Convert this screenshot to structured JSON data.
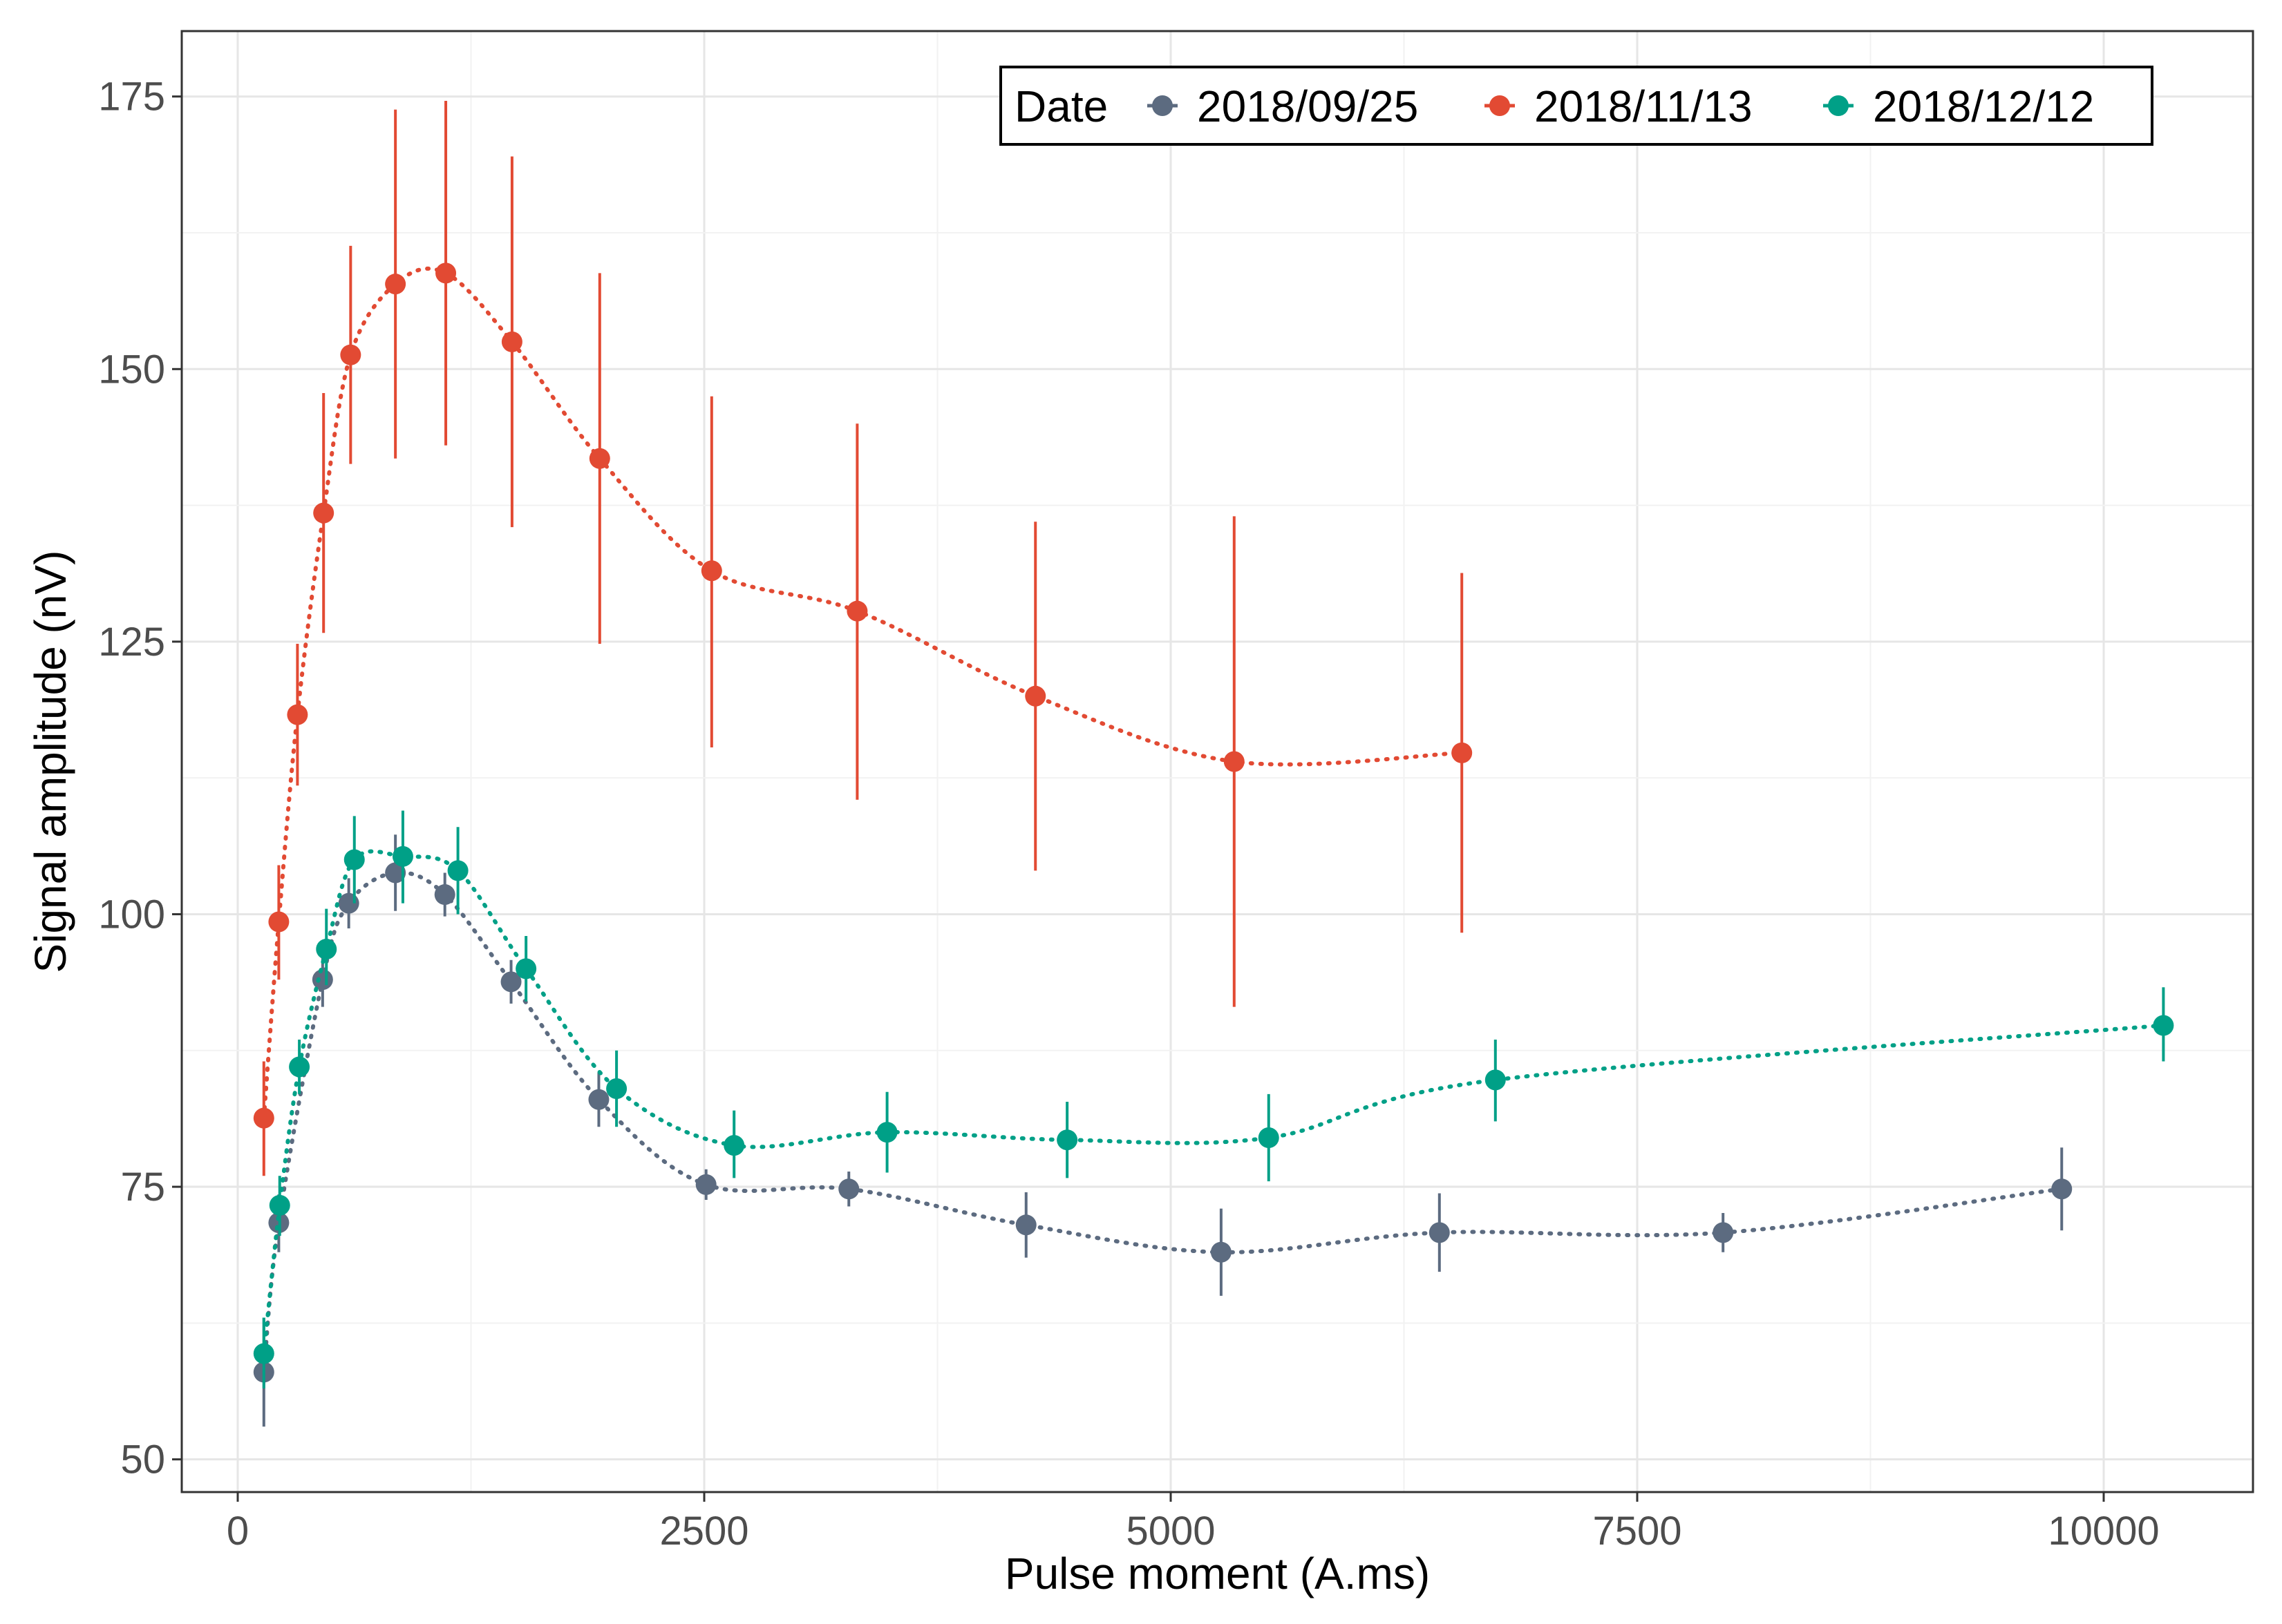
{
  "chart_data": {
    "type": "scatter",
    "title": "",
    "xlabel": "Pulse moment (A.ms)",
    "ylabel": "Signal amplitude (nV)",
    "xlim": [
      -300,
      10800
    ],
    "ylim": [
      47,
      181
    ],
    "x_ticks": [
      0,
      2500,
      5000,
      7500,
      10000
    ],
    "y_ticks": [
      50,
      75,
      100,
      125,
      150,
      175
    ],
    "grid": true,
    "legend": {
      "title": "Date",
      "position": "top-right",
      "entries": [
        "2018/09/25",
        "2018/11/13",
        "2018/12/12"
      ]
    },
    "series": [
      {
        "name": "2018/09/25",
        "color": "#5c6b80",
        "points": [
          {
            "x": 140,
            "y": 58.0,
            "lo": 53.0,
            "hi": 63.0
          },
          {
            "x": 220,
            "y": 71.7,
            "lo": 69.0,
            "hi": 74.3
          },
          {
            "x": 455,
            "y": 94.0,
            "lo": 91.5,
            "hi": 96.5
          },
          {
            "x": 595,
            "y": 101.0,
            "lo": 98.7,
            "hi": 103.3
          },
          {
            "x": 845,
            "y": 103.8,
            "lo": 100.3,
            "hi": 107.3
          },
          {
            "x": 1110,
            "y": 101.8,
            "lo": 99.8,
            "hi": 103.8
          },
          {
            "x": 1465,
            "y": 93.8,
            "lo": 91.8,
            "hi": 95.8
          },
          {
            "x": 1935,
            "y": 83.0,
            "lo": 80.5,
            "hi": 85.5
          },
          {
            "x": 2510,
            "y": 75.2,
            "lo": 73.8,
            "hi": 76.6
          },
          {
            "x": 3275,
            "y": 74.8,
            "lo": 73.2,
            "hi": 76.4
          },
          {
            "x": 4225,
            "y": 71.5,
            "lo": 68.5,
            "hi": 74.5
          },
          {
            "x": 5270,
            "y": 69.0,
            "lo": 65.0,
            "hi": 73.0
          },
          {
            "x": 6440,
            "y": 70.8,
            "lo": 67.2,
            "hi": 74.4
          },
          {
            "x": 7960,
            "y": 70.8,
            "lo": 69.0,
            "hi": 72.6
          },
          {
            "x": 9775,
            "y": 74.8,
            "lo": 71.0,
            "hi": 78.6
          }
        ]
      },
      {
        "name": "2018/11/13",
        "color": "#e24a33",
        "points": [
          {
            "x": 140,
            "y": 81.3,
            "lo": 76.0,
            "hi": 86.5
          },
          {
            "x": 220,
            "y": 99.3,
            "lo": 94.0,
            "hi": 104.5
          },
          {
            "x": 320,
            "y": 118.3,
            "lo": 111.8,
            "hi": 124.8
          },
          {
            "x": 460,
            "y": 136.8,
            "lo": 125.8,
            "hi": 147.8
          },
          {
            "x": 605,
            "y": 151.3,
            "lo": 141.3,
            "hi": 161.3
          },
          {
            "x": 845,
            "y": 157.8,
            "lo": 141.8,
            "hi": 173.8
          },
          {
            "x": 1115,
            "y": 158.8,
            "lo": 143.0,
            "hi": 174.6
          },
          {
            "x": 1470,
            "y": 152.5,
            "lo": 135.5,
            "hi": 169.5
          },
          {
            "x": 1940,
            "y": 141.8,
            "lo": 124.8,
            "hi": 158.8
          },
          {
            "x": 2540,
            "y": 131.5,
            "lo": 115.3,
            "hi": 147.5
          },
          {
            "x": 3320,
            "y": 127.8,
            "lo": 110.5,
            "hi": 145.0
          },
          {
            "x": 4275,
            "y": 120.0,
            "lo": 104.0,
            "hi": 136.0
          },
          {
            "x": 5340,
            "y": 114.0,
            "lo": 91.5,
            "hi": 136.5
          },
          {
            "x": 6560,
            "y": 114.8,
            "lo": 98.3,
            "hi": 131.3
          }
        ]
      },
      {
        "name": "2018/12/12",
        "color": "#00a087",
        "points": [
          {
            "x": 140,
            "y": 59.7,
            "lo": 56.5,
            "hi": 63.0
          },
          {
            "x": 225,
            "y": 73.3,
            "lo": 70.5,
            "hi": 76.0
          },
          {
            "x": 330,
            "y": 86.0,
            "lo": 83.5,
            "hi": 88.5
          },
          {
            "x": 475,
            "y": 96.8,
            "lo": 93.5,
            "hi": 100.5
          },
          {
            "x": 625,
            "y": 105.0,
            "lo": 101.0,
            "hi": 109.0
          },
          {
            "x": 885,
            "y": 105.3,
            "lo": 101.0,
            "hi": 109.5
          },
          {
            "x": 1180,
            "y": 104.0,
            "lo": 100.0,
            "hi": 108.0
          },
          {
            "x": 1545,
            "y": 95.0,
            "lo": 92.0,
            "hi": 98.0
          },
          {
            "x": 2030,
            "y": 84.0,
            "lo": 80.5,
            "hi": 87.5
          },
          {
            "x": 2660,
            "y": 78.8,
            "lo": 75.8,
            "hi": 82.0
          },
          {
            "x": 3480,
            "y": 80.0,
            "lo": 76.3,
            "hi": 83.7
          },
          {
            "x": 4445,
            "y": 79.3,
            "lo": 75.8,
            "hi": 82.8
          },
          {
            "x": 5525,
            "y": 79.5,
            "lo": 75.5,
            "hi": 83.5
          },
          {
            "x": 6740,
            "y": 84.8,
            "lo": 81.0,
            "hi": 88.5
          },
          {
            "x": 10320,
            "y": 89.8,
            "lo": 86.5,
            "hi": 93.3
          }
        ]
      }
    ]
  }
}
